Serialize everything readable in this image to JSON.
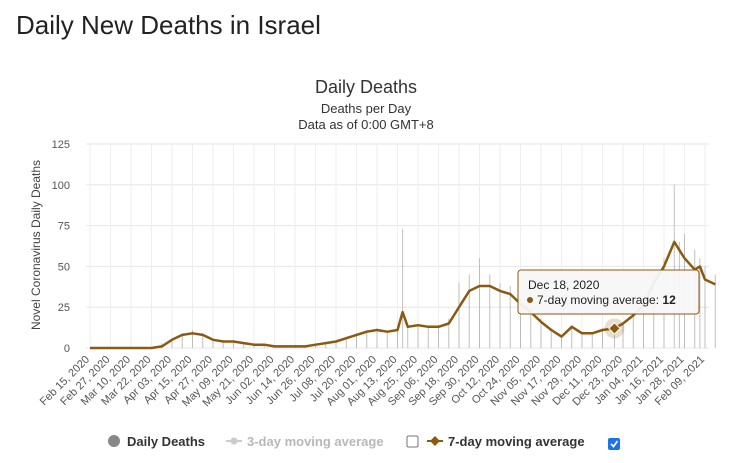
{
  "page": {
    "title": "Daily New Deaths in Israel"
  },
  "chart_data": {
    "type": "line",
    "title": "Daily Deaths",
    "subtitle_lines": [
      "Deaths per Day",
      "Data as of 0:00 GMT+8"
    ],
    "ylabel": "Novel Coronavirus Daily Deaths",
    "xlabel": "",
    "ylim": [
      0,
      125
    ],
    "yticks": [
      0,
      25,
      50,
      75,
      100,
      125
    ],
    "grid": true,
    "legend_position": "bottom",
    "x_tick_labels": [
      "Feb 15, 2020",
      "Feb 27, 2020",
      "Mar 10, 2020",
      "Mar 22, 2020",
      "Apr 03, 2020",
      "Apr 15, 2020",
      "Apr 27, 2020",
      "May 09, 2020",
      "May 21, 2020",
      "Jun 02, 2020",
      "Jun 14, 2020",
      "Jun 26, 2020",
      "Jul 08, 2020",
      "Jul 20, 2020",
      "Aug 01, 2020",
      "Aug 13, 2020",
      "Aug 25, 2020",
      "Sep 06, 2020",
      "Sep 18, 2020",
      "Sep 30, 2020",
      "Oct 12, 2020",
      "Oct 24, 2020",
      "Nov 05, 2020",
      "Nov 17, 2020",
      "Nov 29, 2020",
      "Dec 11, 2020",
      "Dec 23, 2020",
      "Jan 04, 2021",
      "Jan 16, 2021",
      "Jan 28, 2021",
      "Feb 09, 2021"
    ],
    "x": [
      "Feb 15, 2020",
      "Mar 10, 2020",
      "Mar 22, 2020",
      "Mar 28, 2020",
      "Apr 03, 2020",
      "Apr 09, 2020",
      "Apr 15, 2020",
      "Apr 21, 2020",
      "Apr 27, 2020",
      "May 03, 2020",
      "May 09, 2020",
      "May 15, 2020",
      "May 21, 2020",
      "May 27, 2020",
      "Jun 02, 2020",
      "Jun 08, 2020",
      "Jun 14, 2020",
      "Jun 20, 2020",
      "Jun 26, 2020",
      "Jul 02, 2020",
      "Jul 08, 2020",
      "Jul 14, 2020",
      "Jul 20, 2020",
      "Jul 26, 2020",
      "Aug 01, 2020",
      "Aug 07, 2020",
      "Aug 13, 2020",
      "Aug 16, 2020",
      "Aug 19, 2020",
      "Aug 25, 2020",
      "Aug 31, 2020",
      "Sep 06, 2020",
      "Sep 12, 2020",
      "Sep 18, 2020",
      "Sep 24, 2020",
      "Sep 30, 2020",
      "Oct 06, 2020",
      "Oct 12, 2020",
      "Oct 18, 2020",
      "Oct 24, 2020",
      "Oct 30, 2020",
      "Nov 05, 2020",
      "Nov 11, 2020",
      "Nov 17, 2020",
      "Nov 23, 2020",
      "Nov 29, 2020",
      "Dec 05, 2020",
      "Dec 11, 2020",
      "Dec 18, 2020",
      "Dec 23, 2020",
      "Dec 29, 2020",
      "Jan 04, 2021",
      "Jan 10, 2021",
      "Jan 16, 2021",
      "Jan 22, 2021",
      "Jan 25, 2021",
      "Jan 28, 2021",
      "Feb 03, 2021",
      "Feb 06, 2021",
      "Feb 09, 2021",
      "Feb 15, 2021"
    ],
    "series": [
      {
        "name": "Daily Deaths",
        "color": "#b0b0b0",
        "values": [
          0,
          0,
          0,
          3,
          6,
          9,
          11,
          9,
          5,
          4,
          4,
          3,
          2,
          2,
          1,
          1,
          2,
          1,
          2,
          3,
          4,
          7,
          9,
          11,
          12,
          10,
          12,
          73,
          14,
          14,
          13,
          14,
          18,
          40,
          45,
          55,
          45,
          40,
          38,
          30,
          25,
          18,
          12,
          8,
          14,
          10,
          9,
          12,
          12,
          15,
          25,
          30,
          45,
          55,
          100,
          65,
          70,
          60,
          55,
          50,
          45
        ]
      },
      {
        "name": "3-day moving average",
        "color": "#c8c8c8",
        "enabled": false
      },
      {
        "name": "7-day moving average",
        "color": "#8b5a10",
        "enabled": true,
        "values": [
          0,
          0,
          0,
          1,
          5,
          8,
          9,
          8,
          5,
          4,
          4,
          3,
          2,
          2,
          1,
          1,
          1,
          1,
          2,
          3,
          4,
          6,
          8,
          10,
          11,
          10,
          11,
          22,
          13,
          14,
          13,
          13,
          15,
          25,
          35,
          38,
          38,
          35,
          33,
          27,
          22,
          16,
          11,
          7,
          13,
          9,
          9,
          11,
          12,
          15,
          20,
          26,
          40,
          50,
          65,
          60,
          55,
          48,
          50,
          42,
          39
        ]
      }
    ],
    "tooltip": {
      "date": "Dec 18, 2020",
      "label": "7-day moving average:",
      "value": "12",
      "point_index": 48
    }
  }
}
